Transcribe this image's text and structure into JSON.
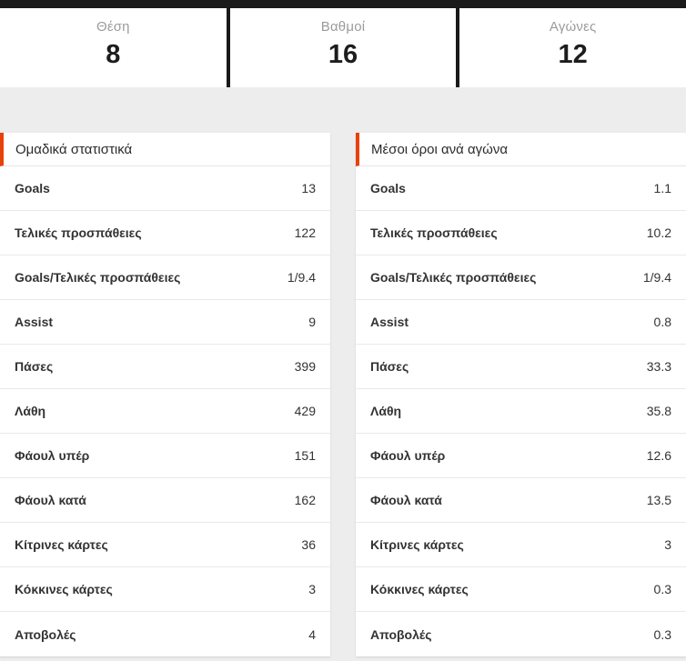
{
  "colors": {
    "accent": "#e8420b",
    "top_bar": "#1a1a1a",
    "page_background": "#ededed"
  },
  "summary": {
    "cards": [
      {
        "label": "Θέση",
        "value": "8"
      },
      {
        "label": "Βαθμοί",
        "value": "16"
      },
      {
        "label": "Αγώνες",
        "value": "12"
      }
    ]
  },
  "tables": [
    {
      "title": "Ομαδικά στατιστικά",
      "rows": [
        {
          "label": "Goals",
          "value": "13"
        },
        {
          "label": "Τελικές προσπάθειες",
          "value": "122"
        },
        {
          "label": "Goals/Τελικές προσπάθειες",
          "value": "1/9.4"
        },
        {
          "label": "Assist",
          "value": "9"
        },
        {
          "label": "Πάσες",
          "value": "399"
        },
        {
          "label": "Λάθη",
          "value": "429"
        },
        {
          "label": "Φάουλ υπέρ",
          "value": "151"
        },
        {
          "label": "Φάουλ κατά",
          "value": "162"
        },
        {
          "label": "Κίτρινες κάρτες",
          "value": "36"
        },
        {
          "label": "Κόκκινες κάρτες",
          "value": "3"
        },
        {
          "label": "Αποβολές",
          "value": "4"
        }
      ]
    },
    {
      "title": "Μέσοι όροι ανά αγώνα",
      "rows": [
        {
          "label": "Goals",
          "value": "1.1"
        },
        {
          "label": "Τελικές προσπάθειες",
          "value": "10.2"
        },
        {
          "label": "Goals/Τελικές προσπάθειες",
          "value": "1/9.4"
        },
        {
          "label": "Assist",
          "value": "0.8"
        },
        {
          "label": "Πάσες",
          "value": "33.3"
        },
        {
          "label": "Λάθη",
          "value": "35.8"
        },
        {
          "label": "Φάουλ υπέρ",
          "value": "12.6"
        },
        {
          "label": "Φάουλ κατά",
          "value": "13.5"
        },
        {
          "label": "Κίτρινες κάρτες",
          "value": "3"
        },
        {
          "label": "Κόκκινες κάρτες",
          "value": "0.3"
        },
        {
          "label": "Αποβολές",
          "value": "0.3"
        }
      ]
    }
  ]
}
